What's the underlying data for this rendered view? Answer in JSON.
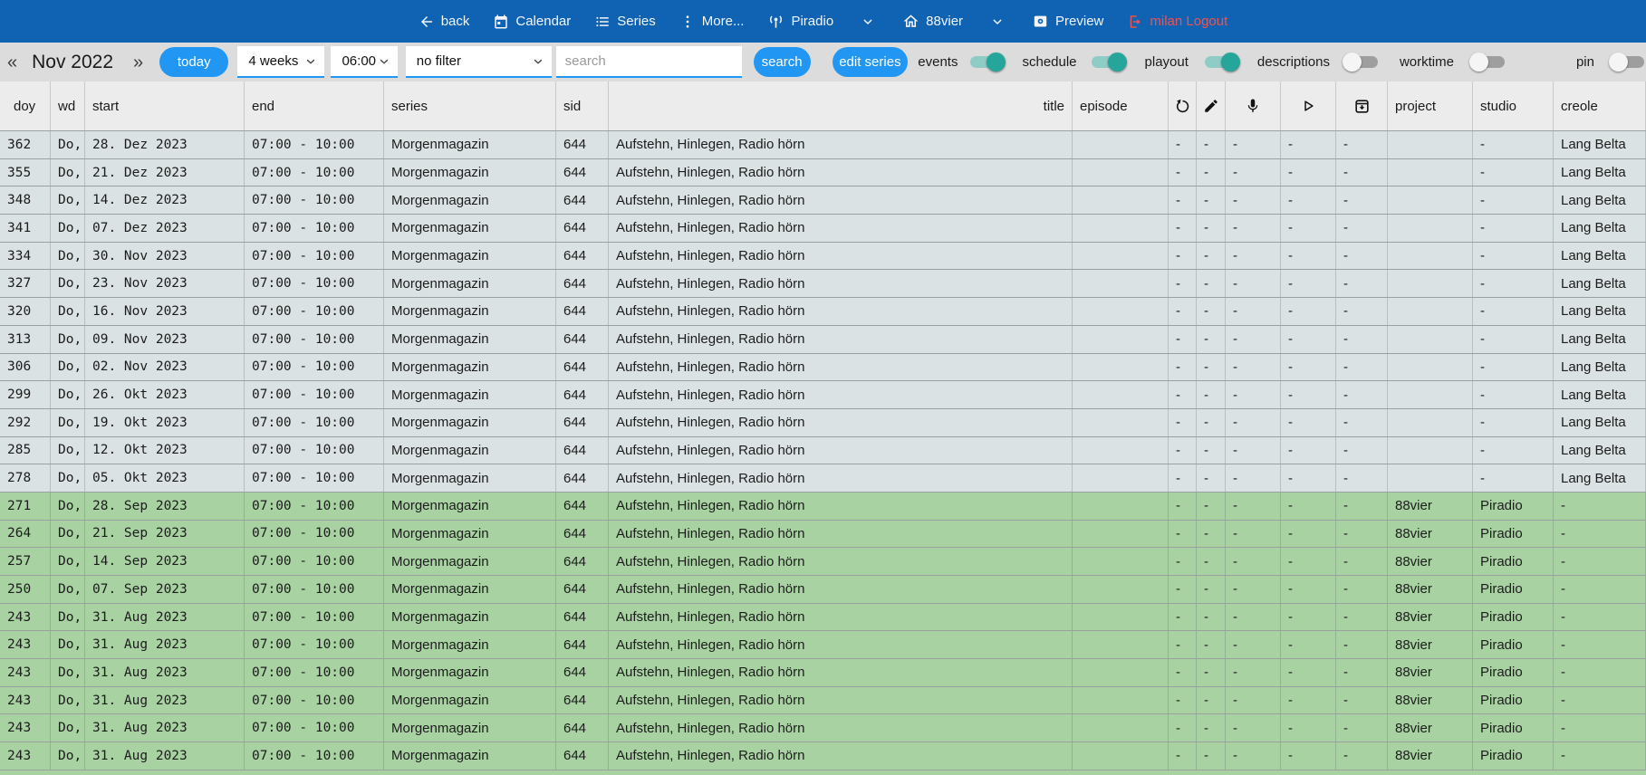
{
  "navbar": {
    "back": "back",
    "calendar": "Calendar",
    "series": "Series",
    "more": "More...",
    "station": "Piradio",
    "site": "88vier",
    "preview": "Preview",
    "logout": "milan Logout"
  },
  "toolbar": {
    "prev_arrow": "«",
    "month": "Nov 2022",
    "next_arrow": "»",
    "today_button": "today",
    "weeks_select": "4 weeks",
    "time_select": "06:00",
    "filter_select": "no filter",
    "search_placeholder": "search",
    "search_button": "search",
    "edit_series_button": "edit series",
    "toggles": [
      {
        "label": "events",
        "on": true
      },
      {
        "label": "schedule",
        "on": true
      },
      {
        "label": "playout",
        "on": true
      },
      {
        "label": "descriptions",
        "on": false
      },
      {
        "label": "worktime",
        "on": false
      },
      {
        "label": "pin",
        "on": false
      }
    ]
  },
  "table": {
    "headers": {
      "doy": "doy",
      "wd": "wd",
      "start": "start",
      "end": "end",
      "series": "series",
      "sid": "sid",
      "title": "title",
      "episode": "episode",
      "project": "project",
      "studio": "studio",
      "creole": "creole"
    },
    "icon_columns": [
      "undo-icon",
      "edit-icon",
      "microphone-icon",
      "play-icon",
      "archive-icon"
    ],
    "rows": [
      {
        "doy": "362",
        "wd": "Do,",
        "start": "28. Dez 2023",
        "end": "07:00 - 10:00",
        "series": "Morgenmagazin",
        "sid": "644",
        "title": "Aufstehn, Hinlegen, Radio hörn",
        "episode": "",
        "a1": "-",
        "a2": "-",
        "a3": "-",
        "a4": "-",
        "a5": "-",
        "project": "",
        "studio": "-",
        "creole": "Lang Belta",
        "variant": "blue"
      },
      {
        "doy": "355",
        "wd": "Do,",
        "start": "21. Dez 2023",
        "end": "07:00 - 10:00",
        "series": "Morgenmagazin",
        "sid": "644",
        "title": "Aufstehn, Hinlegen, Radio hörn",
        "episode": "",
        "a1": "-",
        "a2": "-",
        "a3": "-",
        "a4": "-",
        "a5": "-",
        "project": "",
        "studio": "-",
        "creole": "Lang Belta",
        "variant": "blue"
      },
      {
        "doy": "348",
        "wd": "Do,",
        "start": "14. Dez 2023",
        "end": "07:00 - 10:00",
        "series": "Morgenmagazin",
        "sid": "644",
        "title": "Aufstehn, Hinlegen, Radio hörn",
        "episode": "",
        "a1": "-",
        "a2": "-",
        "a3": "-",
        "a4": "-",
        "a5": "-",
        "project": "",
        "studio": "-",
        "creole": "Lang Belta",
        "variant": "blue"
      },
      {
        "doy": "341",
        "wd": "Do,",
        "start": "07. Dez 2023",
        "end": "07:00 - 10:00",
        "series": "Morgenmagazin",
        "sid": "644",
        "title": "Aufstehn, Hinlegen, Radio hörn",
        "episode": "",
        "a1": "-",
        "a2": "-",
        "a3": "-",
        "a4": "-",
        "a5": "-",
        "project": "",
        "studio": "-",
        "creole": "Lang Belta",
        "variant": "blue"
      },
      {
        "doy": "334",
        "wd": "Do,",
        "start": "30. Nov 2023",
        "end": "07:00 - 10:00",
        "series": "Morgenmagazin",
        "sid": "644",
        "title": "Aufstehn, Hinlegen, Radio hörn",
        "episode": "",
        "a1": "-",
        "a2": "-",
        "a3": "-",
        "a4": "-",
        "a5": "-",
        "project": "",
        "studio": "-",
        "creole": "Lang Belta",
        "variant": "blue"
      },
      {
        "doy": "327",
        "wd": "Do,",
        "start": "23. Nov 2023",
        "end": "07:00 - 10:00",
        "series": "Morgenmagazin",
        "sid": "644",
        "title": "Aufstehn, Hinlegen, Radio hörn",
        "episode": "",
        "a1": "-",
        "a2": "-",
        "a3": "-",
        "a4": "-",
        "a5": "-",
        "project": "",
        "studio": "-",
        "creole": "Lang Belta",
        "variant": "blue"
      },
      {
        "doy": "320",
        "wd": "Do,",
        "start": "16. Nov 2023",
        "end": "07:00 - 10:00",
        "series": "Morgenmagazin",
        "sid": "644",
        "title": "Aufstehn, Hinlegen, Radio hörn",
        "episode": "",
        "a1": "-",
        "a2": "-",
        "a3": "-",
        "a4": "-",
        "a5": "-",
        "project": "",
        "studio": "-",
        "creole": "Lang Belta",
        "variant": "blue"
      },
      {
        "doy": "313",
        "wd": "Do,",
        "start": "09. Nov 2023",
        "end": "07:00 - 10:00",
        "series": "Morgenmagazin",
        "sid": "644",
        "title": "Aufstehn, Hinlegen, Radio hörn",
        "episode": "",
        "a1": "-",
        "a2": "-",
        "a3": "-",
        "a4": "-",
        "a5": "-",
        "project": "",
        "studio": "-",
        "creole": "Lang Belta",
        "variant": "blue"
      },
      {
        "doy": "306",
        "wd": "Do,",
        "start": "02. Nov 2023",
        "end": "07:00 - 10:00",
        "series": "Morgenmagazin",
        "sid": "644",
        "title": "Aufstehn, Hinlegen, Radio hörn",
        "episode": "",
        "a1": "-",
        "a2": "-",
        "a3": "-",
        "a4": "-",
        "a5": "-",
        "project": "",
        "studio": "-",
        "creole": "Lang Belta",
        "variant": "blue"
      },
      {
        "doy": "299",
        "wd": "Do,",
        "start": "26. Okt 2023",
        "end": "07:00 - 10:00",
        "series": "Morgenmagazin",
        "sid": "644",
        "title": "Aufstehn, Hinlegen, Radio hörn",
        "episode": "",
        "a1": "-",
        "a2": "-",
        "a3": "-",
        "a4": "-",
        "a5": "-",
        "project": "",
        "studio": "-",
        "creole": "Lang Belta",
        "variant": "blue"
      },
      {
        "doy": "292",
        "wd": "Do,",
        "start": "19. Okt 2023",
        "end": "07:00 - 10:00",
        "series": "Morgenmagazin",
        "sid": "644",
        "title": "Aufstehn, Hinlegen, Radio hörn",
        "episode": "",
        "a1": "-",
        "a2": "-",
        "a3": "-",
        "a4": "-",
        "a5": "-",
        "project": "",
        "studio": "-",
        "creole": "Lang Belta",
        "variant": "blue"
      },
      {
        "doy": "285",
        "wd": "Do,",
        "start": "12. Okt 2023",
        "end": "07:00 - 10:00",
        "series": "Morgenmagazin",
        "sid": "644",
        "title": "Aufstehn, Hinlegen, Radio hörn",
        "episode": "",
        "a1": "-",
        "a2": "-",
        "a3": "-",
        "a4": "-",
        "a5": "-",
        "project": "",
        "studio": "-",
        "creole": "Lang Belta",
        "variant": "blue"
      },
      {
        "doy": "278",
        "wd": "Do,",
        "start": "05. Okt 2023",
        "end": "07:00 - 10:00",
        "series": "Morgenmagazin",
        "sid": "644",
        "title": "Aufstehn, Hinlegen, Radio hörn",
        "episode": "",
        "a1": "-",
        "a2": "-",
        "a3": "-",
        "a4": "-",
        "a5": "-",
        "project": "",
        "studio": "-",
        "creole": "Lang Belta",
        "variant": "blue"
      },
      {
        "doy": "271",
        "wd": "Do,",
        "start": "28. Sep 2023",
        "end": "07:00 - 10:00",
        "series": "Morgenmagazin",
        "sid": "644",
        "title": "Aufstehn, Hinlegen, Radio hörn",
        "episode": "",
        "a1": "-",
        "a2": "-",
        "a3": "-",
        "a4": "-",
        "a5": "-",
        "project": "88vier",
        "studio": "Piradio",
        "creole": "-",
        "variant": "green"
      },
      {
        "doy": "264",
        "wd": "Do,",
        "start": "21. Sep 2023",
        "end": "07:00 - 10:00",
        "series": "Morgenmagazin",
        "sid": "644",
        "title": "Aufstehn, Hinlegen, Radio hörn",
        "episode": "",
        "a1": "-",
        "a2": "-",
        "a3": "-",
        "a4": "-",
        "a5": "-",
        "project": "88vier",
        "studio": "Piradio",
        "creole": "-",
        "variant": "green"
      },
      {
        "doy": "257",
        "wd": "Do,",
        "start": "14. Sep 2023",
        "end": "07:00 - 10:00",
        "series": "Morgenmagazin",
        "sid": "644",
        "title": "Aufstehn, Hinlegen, Radio hörn",
        "episode": "",
        "a1": "-",
        "a2": "-",
        "a3": "-",
        "a4": "-",
        "a5": "-",
        "project": "88vier",
        "studio": "Piradio",
        "creole": "-",
        "variant": "green"
      },
      {
        "doy": "250",
        "wd": "Do,",
        "start": "07. Sep 2023",
        "end": "07:00 - 10:00",
        "series": "Morgenmagazin",
        "sid": "644",
        "title": "Aufstehn, Hinlegen, Radio hörn",
        "episode": "",
        "a1": "-",
        "a2": "-",
        "a3": "-",
        "a4": "-",
        "a5": "-",
        "project": "88vier",
        "studio": "Piradio",
        "creole": "-",
        "variant": "green"
      },
      {
        "doy": "243",
        "wd": "Do,",
        "start": "31. Aug 2023",
        "end": "07:00 - 10:00",
        "series": "Morgenmagazin",
        "sid": "644",
        "title": "Aufstehn, Hinlegen, Radio hörn",
        "episode": "",
        "a1": "-",
        "a2": "-",
        "a3": "-",
        "a4": "-",
        "a5": "-",
        "project": "88vier",
        "studio": "Piradio",
        "creole": "-",
        "variant": "green"
      },
      {
        "doy": "243",
        "wd": "Do,",
        "start": "31. Aug 2023",
        "end": "07:00 - 10:00",
        "series": "Morgenmagazin",
        "sid": "644",
        "title": "Aufstehn, Hinlegen, Radio hörn",
        "episode": "",
        "a1": "-",
        "a2": "-",
        "a3": "-",
        "a4": "-",
        "a5": "-",
        "project": "88vier",
        "studio": "Piradio",
        "creole": "-",
        "variant": "green"
      },
      {
        "doy": "243",
        "wd": "Do,",
        "start": "31. Aug 2023",
        "end": "07:00 - 10:00",
        "series": "Morgenmagazin",
        "sid": "644",
        "title": "Aufstehn, Hinlegen, Radio hörn",
        "episode": "",
        "a1": "-",
        "a2": "-",
        "a3": "-",
        "a4": "-",
        "a5": "-",
        "project": "88vier",
        "studio": "Piradio",
        "creole": "-",
        "variant": "green"
      },
      {
        "doy": "243",
        "wd": "Do,",
        "start": "31. Aug 2023",
        "end": "07:00 - 10:00",
        "series": "Morgenmagazin",
        "sid": "644",
        "title": "Aufstehn, Hinlegen, Radio hörn",
        "episode": "",
        "a1": "-",
        "a2": "-",
        "a3": "-",
        "a4": "-",
        "a5": "-",
        "project": "88vier",
        "studio": "Piradio",
        "creole": "-",
        "variant": "green"
      },
      {
        "doy": "243",
        "wd": "Do,",
        "start": "31. Aug 2023",
        "end": "07:00 - 10:00",
        "series": "Morgenmagazin",
        "sid": "644",
        "title": "Aufstehn, Hinlegen, Radio hörn",
        "episode": "",
        "a1": "-",
        "a2": "-",
        "a3": "-",
        "a4": "-",
        "a5": "-",
        "project": "88vier",
        "studio": "Piradio",
        "creole": "-",
        "variant": "green"
      },
      {
        "doy": "243",
        "wd": "Do,",
        "start": "31. Aug 2023",
        "end": "07:00 - 10:00",
        "series": "Morgenmagazin",
        "sid": "644",
        "title": "Aufstehn, Hinlegen, Radio hörn",
        "episode": "",
        "a1": "-",
        "a2": "-",
        "a3": "-",
        "a4": "-",
        "a5": "-",
        "project": "88vier",
        "studio": "Piradio",
        "creole": "-",
        "variant": "green"
      }
    ]
  },
  "colors": {
    "navbar_blue": "#1062b2",
    "accent_blue": "#2196f3",
    "toggle_on": "#26a69a",
    "row_blue": "#dbe2e4",
    "row_green": "#a8d2a2",
    "logout_red": "#ef5350"
  }
}
